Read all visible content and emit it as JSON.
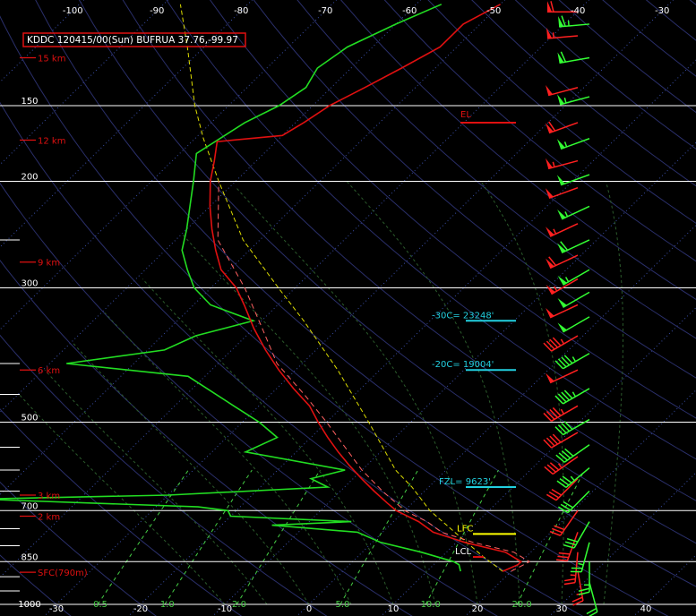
{
  "header": {
    "station_label": "KDDC 120415/00(Sun) BUFRUA 37.76,-99.97"
  },
  "colors": {
    "background": "#000000",
    "isobar": "#ffffff",
    "isotherm": "#3a4fa8",
    "dry_adiabat": "#2a2f6a",
    "moist_adiabat": "#2b5a2b",
    "mixing_ratio": "#44cc44",
    "temperature": "#e01010",
    "dewpoint": "#22dd22",
    "virtual_temp": "#ff6060",
    "parcel": "#dddd00",
    "parcel_green": "#33cc33",
    "height_label": "#e01010",
    "level_marker": "#22d0e0",
    "lfc_marker": "#ffff00",
    "el_marker": "#e01010",
    "wind_red": "#ff2020",
    "wind_green": "#33ff33"
  },
  "chart_data": {
    "type": "skew-t",
    "top_temperature_ticks": [
      "-100",
      "-90",
      "-80",
      "-70",
      "-60",
      "-50",
      "-40",
      "-30"
    ],
    "bottom_temperature_ticks": [
      "-30",
      "-20",
      "-10",
      "0",
      "10",
      "20",
      "30",
      "40"
    ],
    "mixing_ratio_labels": [
      "0.5",
      "1.0",
      "2.0",
      "5.0",
      "10.0",
      "20.0"
    ],
    "pressure_levels": [
      {
        "p": 150,
        "label": "150"
      },
      {
        "p": 200,
        "label": "200"
      },
      {
        "p": 300,
        "label": "300"
      },
      {
        "p": 500,
        "label": "500"
      },
      {
        "p": 700,
        "label": "700"
      },
      {
        "p": 850,
        "label": "850"
      },
      {
        "p": 1000,
        "label": "1000"
      }
    ],
    "minor_pressure_ticks": [
      100,
      250,
      400,
      450,
      550,
      600,
      650,
      750,
      800,
      900,
      950
    ],
    "height_labels": [
      {
        "p": 125,
        "label": "15 km"
      },
      {
        "p": 171,
        "label": "12 km"
      },
      {
        "p": 272,
        "label": "9 km"
      },
      {
        "p": 410,
        "label": "6 km"
      },
      {
        "p": 660,
        "label": "3 km"
      },
      {
        "p": 715,
        "label": "2 km"
      },
      {
        "p": 885,
        "label": "SFC(790m)"
      }
    ],
    "level_markers": [
      {
        "p": 160,
        "label": "EL",
        "kind": "el"
      },
      {
        "p": 340,
        "label": "-30C= 23248'",
        "kind": "level"
      },
      {
        "p": 410,
        "label": "-20C= 19004'",
        "kind": "level"
      },
      {
        "p": 640,
        "label": "FZL= 9623'",
        "kind": "level"
      },
      {
        "p": 765,
        "label": "LFC",
        "kind": "lfc"
      },
      {
        "p": 835,
        "label": "LCL",
        "kind": "lcl"
      }
    ],
    "temperature": [
      [
        882,
        19
      ],
      [
        860,
        20
      ],
      [
        850,
        20
      ],
      [
        820,
        17
      ],
      [
        790,
        11
      ],
      [
        760,
        6
      ],
      [
        730,
        3
      ],
      [
        700,
        -1
      ],
      [
        680,
        -3
      ],
      [
        650,
        -6
      ],
      [
        620,
        -9
      ],
      [
        590,
        -12
      ],
      [
        560,
        -15
      ],
      [
        530,
        -18
      ],
      [
        500,
        -21
      ],
      [
        470,
        -24
      ],
      [
        440,
        -28
      ],
      [
        410,
        -32
      ],
      [
        380,
        -36
      ],
      [
        350,
        -40
      ],
      [
        320,
        -44
      ],
      [
        300,
        -47
      ],
      [
        280,
        -51
      ],
      [
        260,
        -54
      ],
      [
        240,
        -57
      ],
      [
        220,
        -60
      ],
      [
        200,
        -63
      ],
      [
        185,
        -65
      ],
      [
        172,
        -67
      ],
      [
        168,
        -60
      ],
      [
        160,
        -59
      ],
      [
        150,
        -58
      ],
      [
        140,
        -56
      ],
      [
        130,
        -54
      ],
      [
        120,
        -52
      ],
      [
        110,
        -52
      ],
      [
        102,
        -50
      ]
    ],
    "dewpoint": [
      [
        882,
        14
      ],
      [
        860,
        13
      ],
      [
        850,
        12
      ],
      [
        820,
        7
      ],
      [
        790,
        1
      ],
      [
        760,
        -3
      ],
      [
        740,
        -14
      ],
      [
        730,
        -5
      ],
      [
        715,
        -20
      ],
      [
        700,
        -21
      ],
      [
        690,
        -25
      ],
      [
        670,
        -52
      ],
      [
        660,
        -30
      ],
      [
        640,
        -12
      ],
      [
        620,
        -15
      ],
      [
        600,
        -12
      ],
      [
        560,
        -26
      ],
      [
        530,
        -24
      ],
      [
        500,
        -28
      ],
      [
        470,
        -33
      ],
      [
        420,
        -42
      ],
      [
        400,
        -58
      ],
      [
        380,
        -48
      ],
      [
        360,
        -46
      ],
      [
        340,
        -41
      ],
      [
        320,
        -48
      ],
      [
        300,
        -52
      ],
      [
        280,
        -55
      ],
      [
        260,
        -58
      ],
      [
        240,
        -60
      ],
      [
        200,
        -65
      ],
      [
        180,
        -68
      ],
      [
        160,
        -66
      ],
      [
        150,
        -64
      ],
      [
        140,
        -63
      ],
      [
        130,
        -64
      ],
      [
        120,
        -63
      ],
      [
        110,
        -60
      ],
      [
        102,
        -57
      ]
    ],
    "parcel": [
      [
        882,
        19
      ],
      [
        835,
        15
      ],
      [
        765,
        9
      ],
      [
        700,
        3
      ],
      [
        640,
        -2
      ],
      [
        600,
        -6
      ],
      [
        500,
        -15
      ],
      [
        410,
        -25
      ],
      [
        340,
        -35
      ],
      [
        300,
        -42
      ],
      [
        250,
        -52
      ],
      [
        200,
        -62
      ],
      [
        170,
        -69
      ],
      [
        150,
        -74
      ],
      [
        120,
        -82
      ],
      [
        102,
        -88
      ]
    ],
    "virtual_temp": [
      [
        882,
        20
      ],
      [
        850,
        21
      ],
      [
        820,
        18
      ],
      [
        790,
        12
      ],
      [
        760,
        7
      ],
      [
        730,
        4
      ],
      [
        700,
        0
      ],
      [
        650,
        -5
      ],
      [
        600,
        -10
      ],
      [
        500,
        -20
      ],
      [
        450,
        -26
      ],
      [
        400,
        -33
      ],
      [
        350,
        -39
      ],
      [
        300,
        -46
      ],
      [
        250,
        -55
      ],
      [
        200,
        -62
      ]
    ],
    "winds_red": [
      {
        "p": 105,
        "dir": 270,
        "spd": 60
      },
      {
        "p": 115,
        "dir": 265,
        "spd": 55
      },
      {
        "p": 140,
        "dir": 255,
        "spd": 50
      },
      {
        "p": 160,
        "dir": 250,
        "spd": 60
      },
      {
        "p": 185,
        "dir": 255,
        "spd": 55
      },
      {
        "p": 205,
        "dir": 250,
        "spd": 50
      },
      {
        "p": 235,
        "dir": 245,
        "spd": 55
      },
      {
        "p": 265,
        "dir": 245,
        "spd": 60
      },
      {
        "p": 290,
        "dir": 240,
        "spd": 55
      },
      {
        "p": 320,
        "dir": 245,
        "spd": 50
      },
      {
        "p": 360,
        "dir": 240,
        "spd": 45
      },
      {
        "p": 410,
        "dir": 245,
        "spd": 50
      },
      {
        "p": 470,
        "dir": 240,
        "spd": 45
      },
      {
        "p": 520,
        "dir": 240,
        "spd": 40
      },
      {
        "p": 570,
        "dir": 235,
        "spd": 35
      },
      {
        "p": 620,
        "dir": 225,
        "spd": 30
      },
      {
        "p": 700,
        "dir": 215,
        "spd": 30
      },
      {
        "p": 760,
        "dir": 200,
        "spd": 30
      },
      {
        "p": 820,
        "dir": 185,
        "spd": 25
      },
      {
        "p": 880,
        "dir": 170,
        "spd": 25
      }
    ],
    "winds_green": [
      {
        "p": 110,
        "dir": 265,
        "spd": 65
      },
      {
        "p": 125,
        "dir": 260,
        "spd": 60
      },
      {
        "p": 145,
        "dir": 255,
        "spd": 55
      },
      {
        "p": 170,
        "dir": 250,
        "spd": 55
      },
      {
        "p": 195,
        "dir": 250,
        "spd": 50
      },
      {
        "p": 220,
        "dir": 245,
        "spd": 55
      },
      {
        "p": 250,
        "dir": 245,
        "spd": 60
      },
      {
        "p": 280,
        "dir": 240,
        "spd": 55
      },
      {
        "p": 305,
        "dir": 240,
        "spd": 50
      },
      {
        "p": 335,
        "dir": 240,
        "spd": 50
      },
      {
        "p": 385,
        "dir": 240,
        "spd": 45
      },
      {
        "p": 440,
        "dir": 240,
        "spd": 45
      },
      {
        "p": 495,
        "dir": 240,
        "spd": 40
      },
      {
        "p": 545,
        "dir": 235,
        "spd": 40
      },
      {
        "p": 595,
        "dir": 230,
        "spd": 35
      },
      {
        "p": 650,
        "dir": 225,
        "spd": 30
      },
      {
        "p": 730,
        "dir": 210,
        "spd": 30
      },
      {
        "p": 790,
        "dir": 195,
        "spd": 25
      },
      {
        "p": 850,
        "dir": 180,
        "spd": 25
      },
      {
        "p": 920,
        "dir": 165,
        "spd": 20
      }
    ]
  }
}
